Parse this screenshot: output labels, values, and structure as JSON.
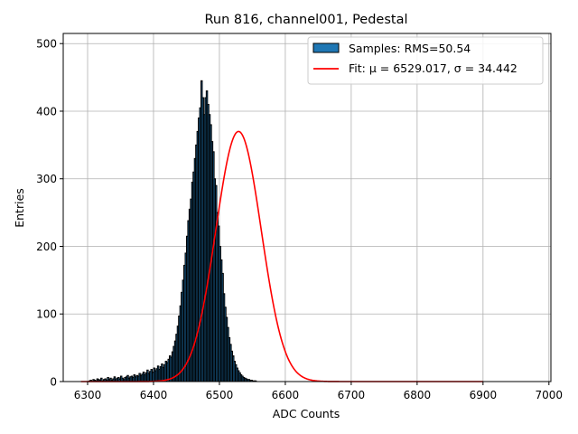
{
  "chart_data": {
    "type": "bar",
    "title": "Run 816, channel001, Pedestal",
    "xlabel": "ADC Counts",
    "ylabel": "Entries",
    "xlim": [
      6263,
      7003
    ],
    "ylim": [
      0,
      515
    ],
    "xticks": [
      6300,
      6400,
      6500,
      6600,
      6700,
      6800,
      6900,
      7000
    ],
    "yticks": [
      0,
      100,
      200,
      300,
      400,
      500
    ],
    "grid": true,
    "legend_position": "top-right",
    "histogram": {
      "name": "Samples: RMS=50.54",
      "face_color": "#1f77b4",
      "edge_color": "#000000",
      "bin_width": 2,
      "bin_start": 6300,
      "values": [
        0,
        1,
        2,
        0,
        3,
        2,
        1,
        4,
        3,
        2,
        5,
        1,
        3,
        4,
        2,
        6,
        3,
        5,
        2,
        4,
        7,
        3,
        5,
        6,
        4,
        8,
        5,
        3,
        6,
        7,
        9,
        5,
        7,
        8,
        6,
        10,
        7,
        9,
        8,
        12,
        9,
        11,
        14,
        10,
        13,
        17,
        12,
        15,
        18,
        14,
        20,
        16,
        19,
        23,
        18,
        22,
        26,
        21,
        25,
        30,
        28,
        33,
        38,
        36,
        44,
        52,
        60,
        70,
        82,
        97,
        112,
        132,
        150,
        172,
        190,
        215,
        238,
        255,
        270,
        295,
        310,
        330,
        350,
        370,
        390,
        405,
        445,
        420,
        395,
        420,
        430,
        410,
        395,
        380,
        355,
        340,
        300,
        290,
        250,
        230,
        200,
        180,
        160,
        130,
        110,
        95,
        80,
        65,
        55,
        45,
        38,
        30,
        25,
        20,
        16,
        13,
        10,
        8,
        6,
        5,
        4,
        3,
        3,
        2,
        2,
        1,
        1,
        1
      ]
    },
    "fit": {
      "name": "Fit: μ = 6529.017, σ = 34.442",
      "color": "#ff0000",
      "mu": 6529.017,
      "sigma": 34.442,
      "amplitude": 370,
      "x_range": [
        6290,
        6900
      ]
    }
  }
}
